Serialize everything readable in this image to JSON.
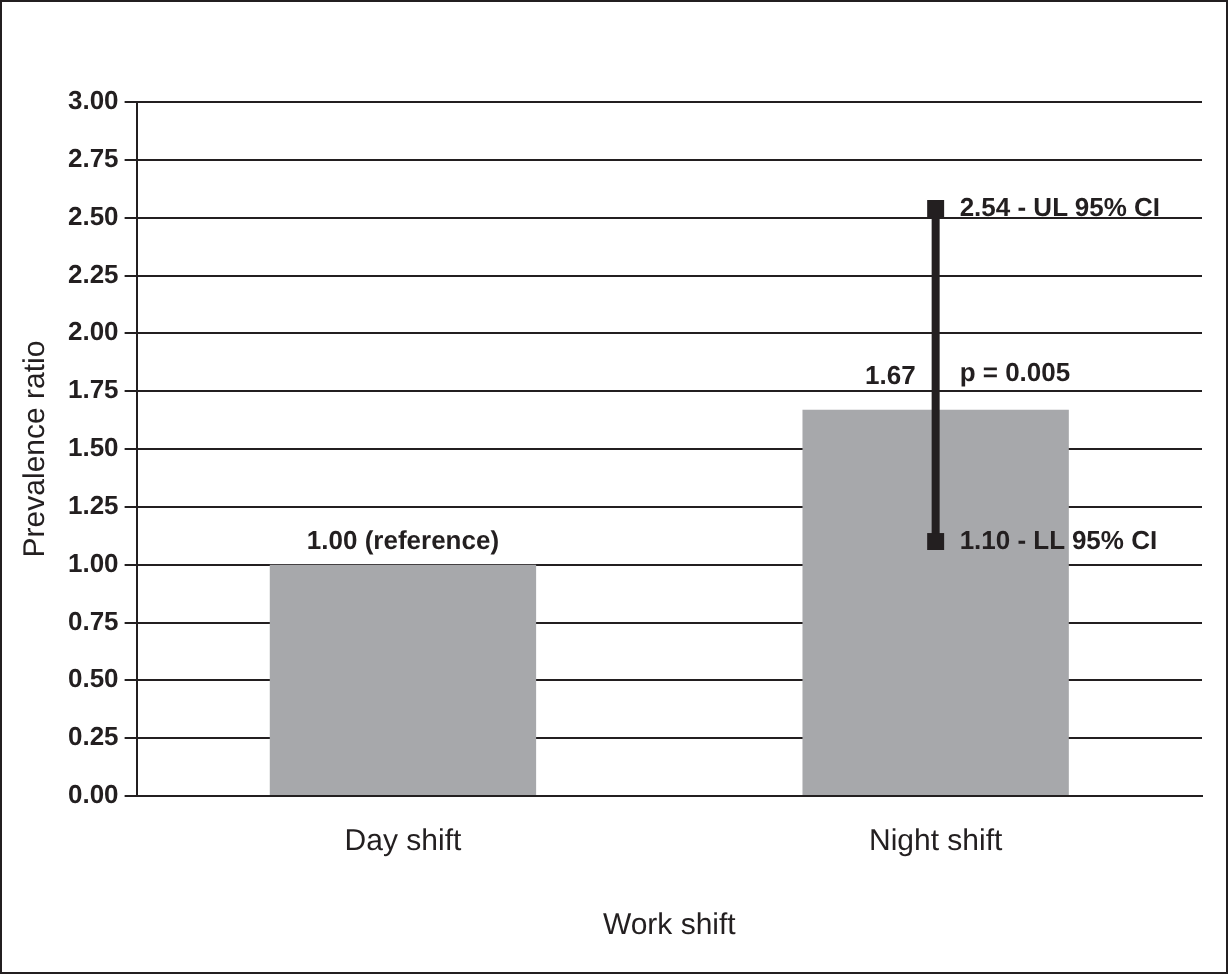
{
  "chart_data": {
    "type": "bar",
    "xlabel": "Work shift",
    "ylabel": "Prevalence ratio",
    "categories": [
      "Day shift",
      "Night shift"
    ],
    "series": [
      {
        "color": "#a7a8ab",
        "values": [
          1.0,
          1.67
        ],
        "value_labels": [
          "1.00 (reference)",
          "1.67"
        ]
      },
      {
        "type": "line",
        "color": "#231f20",
        "x": [
          "Night shift",
          "Night shift"
        ],
        "values": [
          1.1,
          2.54
        ],
        "marker": "square"
      }
    ],
    "ylim": [
      0,
      3
    ],
    "yticks": [
      {
        "value": 0,
        "label": "0.00"
      },
      {
        "value": 0.25,
        "label": "0.25"
      },
      {
        "value": 0.5,
        "label": "0.50"
      },
      {
        "value": 0.75,
        "label": "0.75"
      },
      {
        "value": 1,
        "label": "1.00"
      },
      {
        "value": 1.25,
        "label": "1.25"
      },
      {
        "value": 1.5,
        "label": "1.50"
      },
      {
        "value": 1.75,
        "label": "1.75"
      },
      {
        "value": 2,
        "label": "2.00"
      },
      {
        "value": 2.25,
        "label": "2.25"
      },
      {
        "value": 2.5,
        "label": "2.50"
      },
      {
        "value": 2.75,
        "label": "2.75"
      },
      {
        "value": 3,
        "label": "3.00"
      }
    ],
    "grid": "y",
    "legend": false,
    "annotations": [
      {
        "text": "2.54 - UL 95% CI",
        "x": "Night shift",
        "y": 2.54
      },
      {
        "text": "1.10 - LL 95% CI",
        "x": "Night shift",
        "y": 1.1
      },
      {
        "text": "p = 0.005",
        "x": "Night shift",
        "y": 1.67
      }
    ]
  }
}
